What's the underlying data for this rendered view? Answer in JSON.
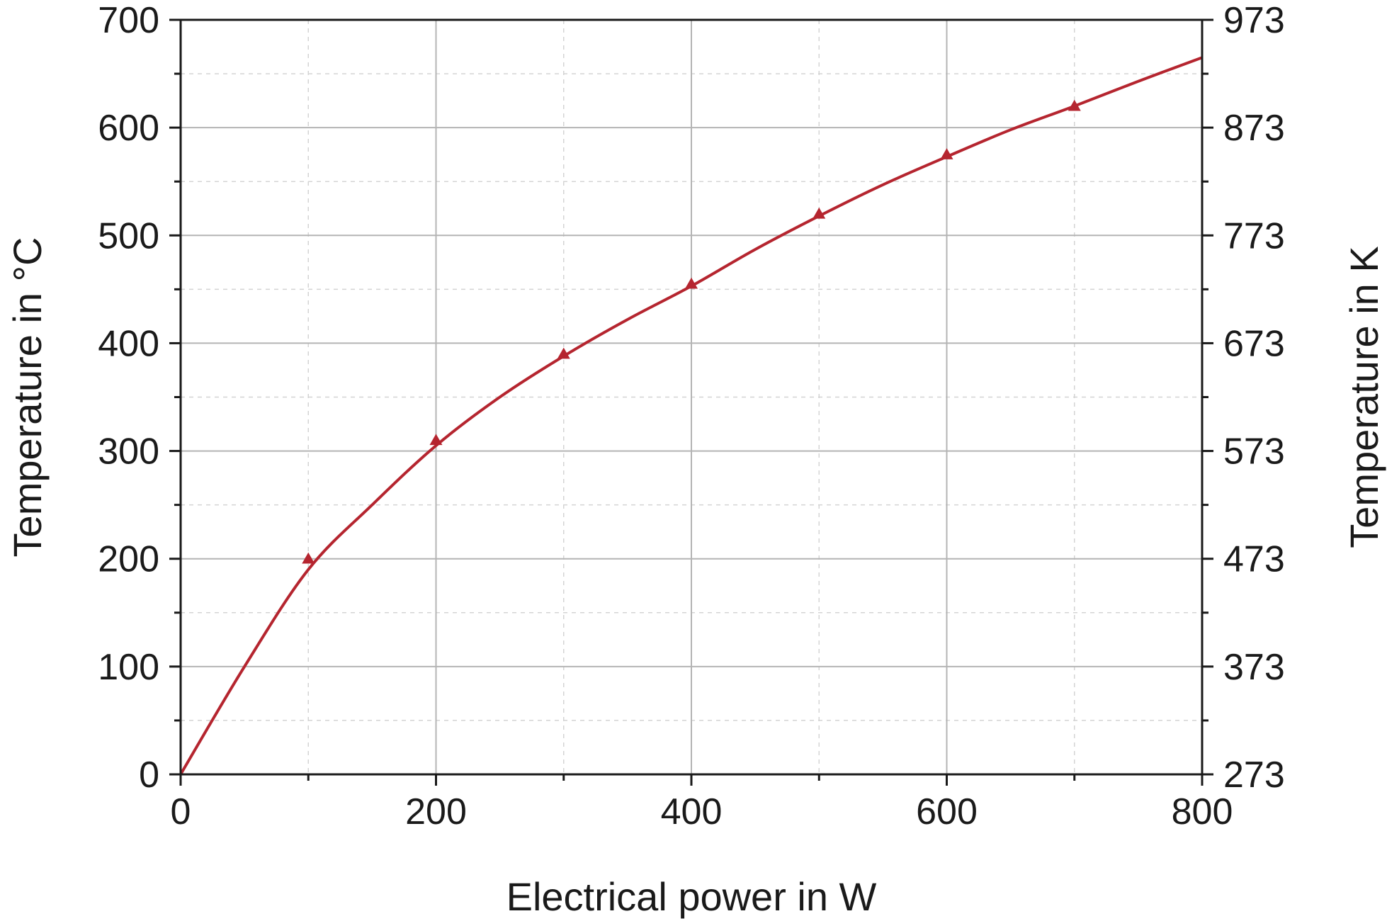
{
  "chart_data": {
    "type": "line",
    "xlabel": "Electrical power in W",
    "ylabel": "Temperature in °C",
    "y2label": "Temperature in K",
    "xlim": [
      0,
      800
    ],
    "ylim": [
      0,
      700
    ],
    "y2lim": [
      273,
      973
    ],
    "x_ticks": [
      0,
      200,
      400,
      600,
      800
    ],
    "y_ticks": [
      0,
      100,
      200,
      300,
      400,
      500,
      600,
      700
    ],
    "y2_ticks": [
      273,
      373,
      473,
      573,
      673,
      773,
      873,
      973
    ],
    "grid": true,
    "series": [
      {
        "style": "markers",
        "marker": "triangle",
        "x": [
          100,
          200,
          300,
          400,
          500,
          600,
          700
        ],
        "y": [
          200,
          310,
          390,
          455,
          520,
          575,
          620
        ]
      },
      {
        "style": "line",
        "x": [
          0,
          50,
          100,
          150,
          200,
          250,
          300,
          350,
          400,
          450,
          500,
          550,
          600,
          650,
          700,
          750,
          800
        ],
        "y": [
          0,
          100,
          190,
          250,
          305,
          350,
          388,
          422,
          453,
          487,
          518,
          547,
          573,
          598,
          620,
          643,
          665
        ]
      }
    ],
    "color": "#b5252f"
  }
}
